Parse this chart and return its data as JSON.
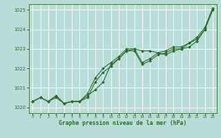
{
  "background_color": "#b8ddd8",
  "plot_bg_color": "#b8ddd8",
  "grid_color": "#ffffff",
  "line_color": "#2d6b2d",
  "marker_color": "#2d6b2d",
  "xlabel": "Graphe pression niveau de la mer (hPa)",
  "xlim": [
    -0.5,
    23.5
  ],
  "ylim": [
    1019.7,
    1025.3
  ],
  "yticks": [
    1020,
    1021,
    1022,
    1023,
    1024,
    1025
  ],
  "xticks": [
    0,
    1,
    2,
    3,
    4,
    5,
    6,
    7,
    8,
    9,
    10,
    11,
    12,
    13,
    14,
    15,
    16,
    17,
    18,
    19,
    20,
    21,
    22,
    23
  ],
  "series1_x": [
    0,
    1,
    2,
    3,
    4,
    5,
    6,
    7,
    8,
    9,
    10,
    11,
    12,
    13,
    14,
    15,
    16,
    17,
    18,
    19,
    20,
    21,
    22,
    23
  ],
  "series1_y": [
    1020.3,
    1020.5,
    1020.3,
    1020.5,
    1020.2,
    1020.3,
    1020.3,
    1020.5,
    1021.3,
    1021.8,
    1022.1,
    1022.5,
    1022.9,
    1023.0,
    1022.9,
    1022.9,
    1022.8,
    1022.7,
    1022.9,
    1023.0,
    1023.3,
    1023.5,
    1024.0,
    1025.0
  ],
  "series2_x": [
    0,
    1,
    2,
    3,
    4,
    5,
    6,
    7,
    8,
    9,
    10,
    11,
    12,
    13,
    14,
    15,
    16,
    17,
    18,
    19,
    20,
    21,
    22,
    23
  ],
  "series2_y": [
    1020.3,
    1020.5,
    1020.3,
    1020.6,
    1020.2,
    1020.3,
    1020.3,
    1020.6,
    1020.9,
    1021.3,
    1022.2,
    1022.5,
    1022.9,
    1022.9,
    1022.2,
    1022.4,
    1022.7,
    1022.8,
    1023.0,
    1023.0,
    1023.1,
    1023.4,
    1024.0,
    1025.0
  ],
  "series3_x": [
    0,
    1,
    2,
    3,
    4,
    5,
    6,
    7,
    8,
    9,
    10,
    11,
    12,
    13,
    14,
    15,
    16,
    17,
    18,
    19,
    20,
    21,
    22,
    23
  ],
  "series3_y": [
    1020.3,
    1020.5,
    1020.3,
    1020.6,
    1020.2,
    1020.3,
    1020.3,
    1020.7,
    1021.5,
    1022.0,
    1022.3,
    1022.6,
    1023.0,
    1023.0,
    1022.3,
    1022.5,
    1022.8,
    1022.9,
    1023.1,
    1023.1,
    1023.3,
    1023.6,
    1024.1,
    1025.1
  ]
}
